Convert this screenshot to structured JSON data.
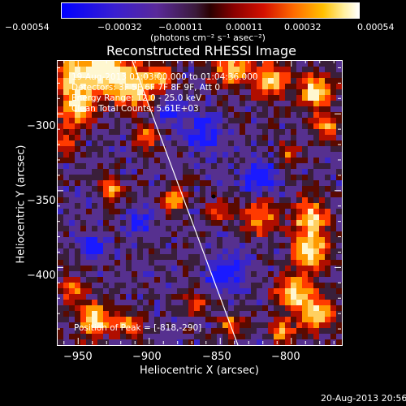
{
  "colorbar": {
    "ticks": [
      "−0.00054",
      "−0.00032",
      "−0.00011",
      "0.00011",
      "0.00032",
      "0.00054"
    ],
    "unit_label": "(photons cm⁻² s⁻¹ asec⁻²)",
    "range": [
      -0.00054,
      0.00054
    ]
  },
  "chart_data": {
    "type": "heatmap",
    "title": "Reconstructed RHESSI Image",
    "xlabel": "Heliocentric X (arcsec)",
    "ylabel": "Heliocentric Y (arcsec)",
    "xlim": [
      -965,
      -765
    ],
    "ylim": [
      -450,
      -265
    ],
    "x_ticks": [
      "−950",
      "−900",
      "−850",
      "−800"
    ],
    "y_ticks": [
      "−300",
      "−350",
      "−400"
    ],
    "info_lines": [
      "19-Aug-2013 01:03:00.000 to 01:04:36.000",
      "Detectors: 3F 5F 6F 7F 8F 9F, Att 0",
      "Energy Range: 12.0 - 25.0 keV",
      "Clean    Total Counts: 5.61E+03"
    ],
    "peak_label": "Position of Peak = [-818,-290]",
    "peak": [
      -818,
      -290
    ]
  },
  "footer": {
    "timestamp": "20-Aug-2013 20:56"
  }
}
